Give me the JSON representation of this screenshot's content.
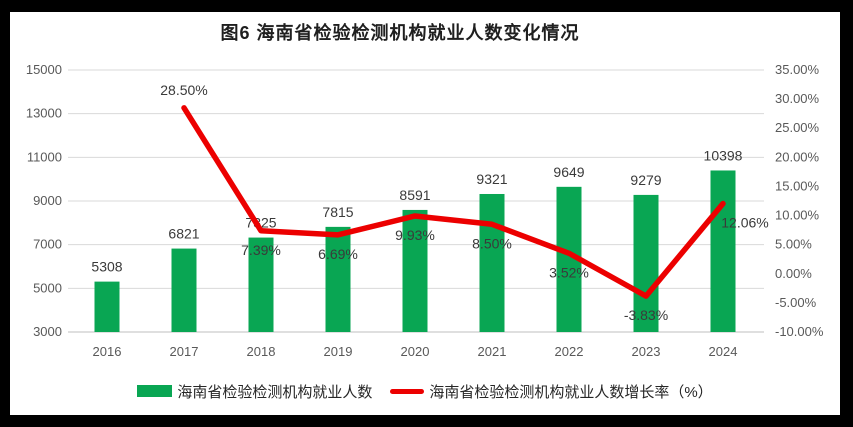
{
  "title": "图6  海南省检验检测机构就业人数变化情况",
  "legend": [
    {
      "type": "bar-swatch",
      "color": "#09a653",
      "label": "海南省检验检测机构就业人数"
    },
    {
      "type": "line-swatch",
      "color": "#ec0000",
      "label": "海南省检验检测机构就业人数增长率（%）"
    }
  ],
  "colors": {
    "bar": "#09a653",
    "line": "#ec0000",
    "grid": "#d9d9d9",
    "axis_line": "#bfbfbf",
    "tick_text": "#595959",
    "data_label_text": "#3a3a3a",
    "panel_background": "#ffffff",
    "page_background": "#000000"
  },
  "chart_data": {
    "type": "bar+line combo",
    "title": "图6  海南省检验检测机构就业人数变化情况",
    "categories": [
      "2016",
      "2017",
      "2018",
      "2019",
      "2020",
      "2021",
      "2022",
      "2023",
      "2024"
    ],
    "series": [
      {
        "name": "海南省检验检测机构就业人数",
        "type": "bar",
        "axis": "left",
        "color": "#09a653",
        "values": [
          5308,
          6821,
          7325,
          7815,
          8591,
          9321,
          9649,
          9279,
          10398
        ],
        "labels": [
          "5308",
          "6821",
          "7325",
          "7815",
          "8591",
          "9321",
          "9649",
          "9279",
          "10398"
        ]
      },
      {
        "name": "海南省检验检测机构就业人数增长率（%）",
        "type": "line",
        "axis": "right",
        "color": "#ec0000",
        "values": [
          null,
          28.5,
          7.39,
          6.69,
          9.93,
          8.5,
          3.52,
          -3.83,
          12.06
        ],
        "labels": [
          null,
          "28.50%",
          "7.39%",
          "6.69%",
          "9.93%",
          "8.50%",
          "3.52%",
          "-3.83%",
          "12.06%"
        ]
      }
    ],
    "left_axis": {
      "min": 3000,
      "max": 15000,
      "step": 2000,
      "ticks": [
        "15000",
        "13000",
        "11000",
        "9000",
        "7000",
        "5000",
        "3000"
      ]
    },
    "right_axis": {
      "min": -10,
      "max": 35,
      "step": 5,
      "ticks": [
        "35.00%",
        "30.00%",
        "25.00%",
        "20.00%",
        "15.00%",
        "10.00%",
        "5.00%",
        "0.00%",
        "-5.00%",
        "-10.00%"
      ]
    },
    "grid": true,
    "legend_position": "bottom"
  }
}
